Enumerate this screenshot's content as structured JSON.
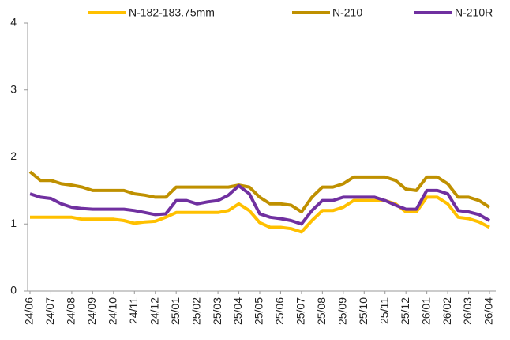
{
  "chart_data": {
    "type": "line",
    "categories": [
      "24/06",
      null,
      "24/07",
      null,
      "24/08",
      null,
      "24/09",
      null,
      "24/10",
      null,
      "24/11",
      null,
      "24/12",
      null,
      "25/01",
      null,
      "25/02",
      null,
      "25/03",
      null,
      "25/04",
      null,
      "25/05",
      null,
      "25/06",
      null,
      "25/07",
      null,
      "25/08",
      null,
      "25/09",
      null,
      "25/10",
      null,
      "25/11",
      null,
      "25/12",
      null,
      "26/01",
      null,
      "26/02",
      null,
      "26/03",
      null,
      "26/04"
    ],
    "series": [
      {
        "name": "N-182-183.75mm",
        "color": "#ffc000",
        "values": [
          1.1,
          1.1,
          1.1,
          1.1,
          1.1,
          1.07,
          1.07,
          1.07,
          1.07,
          1.05,
          1.01,
          1.03,
          1.04,
          1.1,
          1.17,
          1.17,
          1.17,
          1.17,
          1.17,
          1.2,
          1.3,
          1.2,
          1.02,
          0.95,
          0.95,
          0.93,
          0.88,
          1.05,
          1.2,
          1.2,
          1.25,
          1.35,
          1.35,
          1.35,
          1.35,
          1.3,
          1.18,
          1.18,
          1.4,
          1.4,
          1.3,
          1.1,
          1.08,
          1.03,
          0.95
        ]
      },
      {
        "name": "N-210",
        "color": "#bf9000",
        "values": [
          1.78,
          1.65,
          1.65,
          1.6,
          1.58,
          1.55,
          1.5,
          1.5,
          1.5,
          1.5,
          1.45,
          1.43,
          1.4,
          1.4,
          1.55,
          1.55,
          1.55,
          1.55,
          1.55,
          1.55,
          1.58,
          1.55,
          1.4,
          1.3,
          1.3,
          1.28,
          1.18,
          1.4,
          1.55,
          1.55,
          1.6,
          1.7,
          1.7,
          1.7,
          1.7,
          1.65,
          1.52,
          1.5,
          1.7,
          1.7,
          1.6,
          1.4,
          1.4,
          1.35,
          1.25
        ]
      },
      {
        "name": "N-210R",
        "color": "#7030a0",
        "values": [
          1.45,
          1.4,
          1.38,
          1.3,
          1.25,
          1.23,
          1.22,
          1.22,
          1.22,
          1.22,
          1.2,
          1.17,
          1.14,
          1.15,
          1.35,
          1.35,
          1.3,
          1.33,
          1.35,
          1.43,
          1.57,
          1.45,
          1.15,
          1.1,
          1.08,
          1.05,
          1.0,
          1.2,
          1.35,
          1.35,
          1.4,
          1.4,
          1.4,
          1.4,
          1.35,
          1.28,
          1.22,
          1.22,
          1.5,
          1.5,
          1.45,
          1.2,
          1.18,
          1.14,
          1.05
        ]
      }
    ],
    "ylim": [
      0,
      4
    ],
    "yticks": [
      0,
      1,
      2,
      3,
      4
    ],
    "grid": false,
    "legend": "top"
  }
}
